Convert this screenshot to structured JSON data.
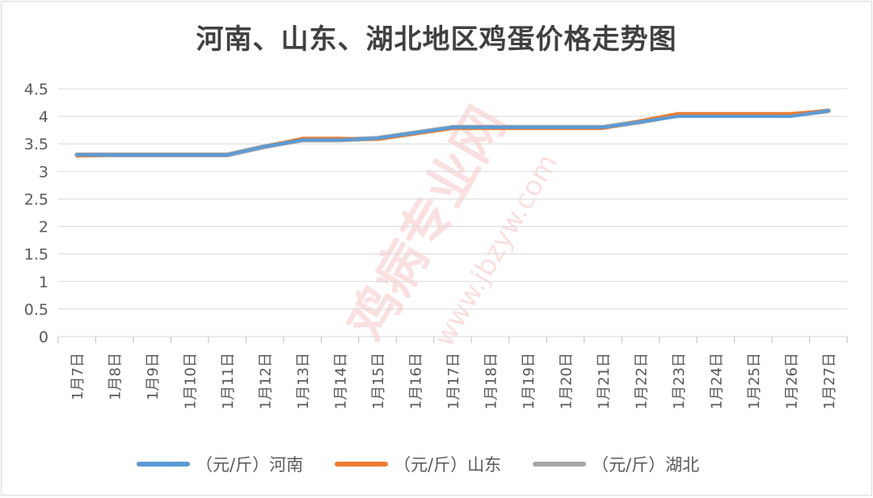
{
  "chart_data": {
    "type": "line",
    "title": "河南、山东、湖北地区鸡蛋价格走势图",
    "xlabel": "",
    "ylabel": "",
    "ylim": [
      0,
      4.5
    ],
    "yticks": [
      "0",
      "0.5",
      "1",
      "1.5",
      "2",
      "2.5",
      "3",
      "3.5",
      "4",
      "4.5"
    ],
    "grid": true,
    "legend_position": "bottom",
    "categories": [
      "1月7日",
      "1月8日",
      "1月9日",
      "1月10日",
      "1月11日",
      "1月12日",
      "1月13日",
      "1月14日",
      "1月15日",
      "1月16日",
      "1月17日",
      "1月18日",
      "1月19日",
      "1月20日",
      "1月21日",
      "1月22日",
      "1月23日",
      "1月24日",
      "1月25日",
      "1月26日",
      "1月27日"
    ],
    "series": [
      {
        "name": "（元/斤）河南",
        "color": "#5b9bd5",
        "values": [
          3.3,
          3.3,
          3.3,
          3.3,
          3.3,
          3.45,
          3.57,
          3.57,
          3.6,
          3.7,
          3.8,
          3.8,
          3.8,
          3.8,
          3.8,
          3.9,
          4.0,
          4.0,
          4.0,
          4.0,
          4.1
        ]
      },
      {
        "name": "（元/斤）山东",
        "color": "#ed7d31",
        "values": [
          3.28,
          3.3,
          3.3,
          3.3,
          3.3,
          3.45,
          3.6,
          3.6,
          3.58,
          3.68,
          3.78,
          3.78,
          3.78,
          3.78,
          3.78,
          3.92,
          4.05,
          4.05,
          4.05,
          4.05,
          4.1
        ]
      },
      {
        "name": "（元/斤）湖北",
        "color": "#a5a5a5",
        "values": [
          3.3,
          3.3,
          3.3,
          3.3,
          3.3,
          3.45,
          3.57,
          3.57,
          3.6,
          3.7,
          3.8,
          3.8,
          3.8,
          3.8,
          3.8,
          3.9,
          4.02,
          4.02,
          4.02,
          4.02,
          4.1
        ]
      }
    ]
  },
  "watermark": {
    "text": "鸡病专业网",
    "url": "www.jbzyw.com"
  }
}
